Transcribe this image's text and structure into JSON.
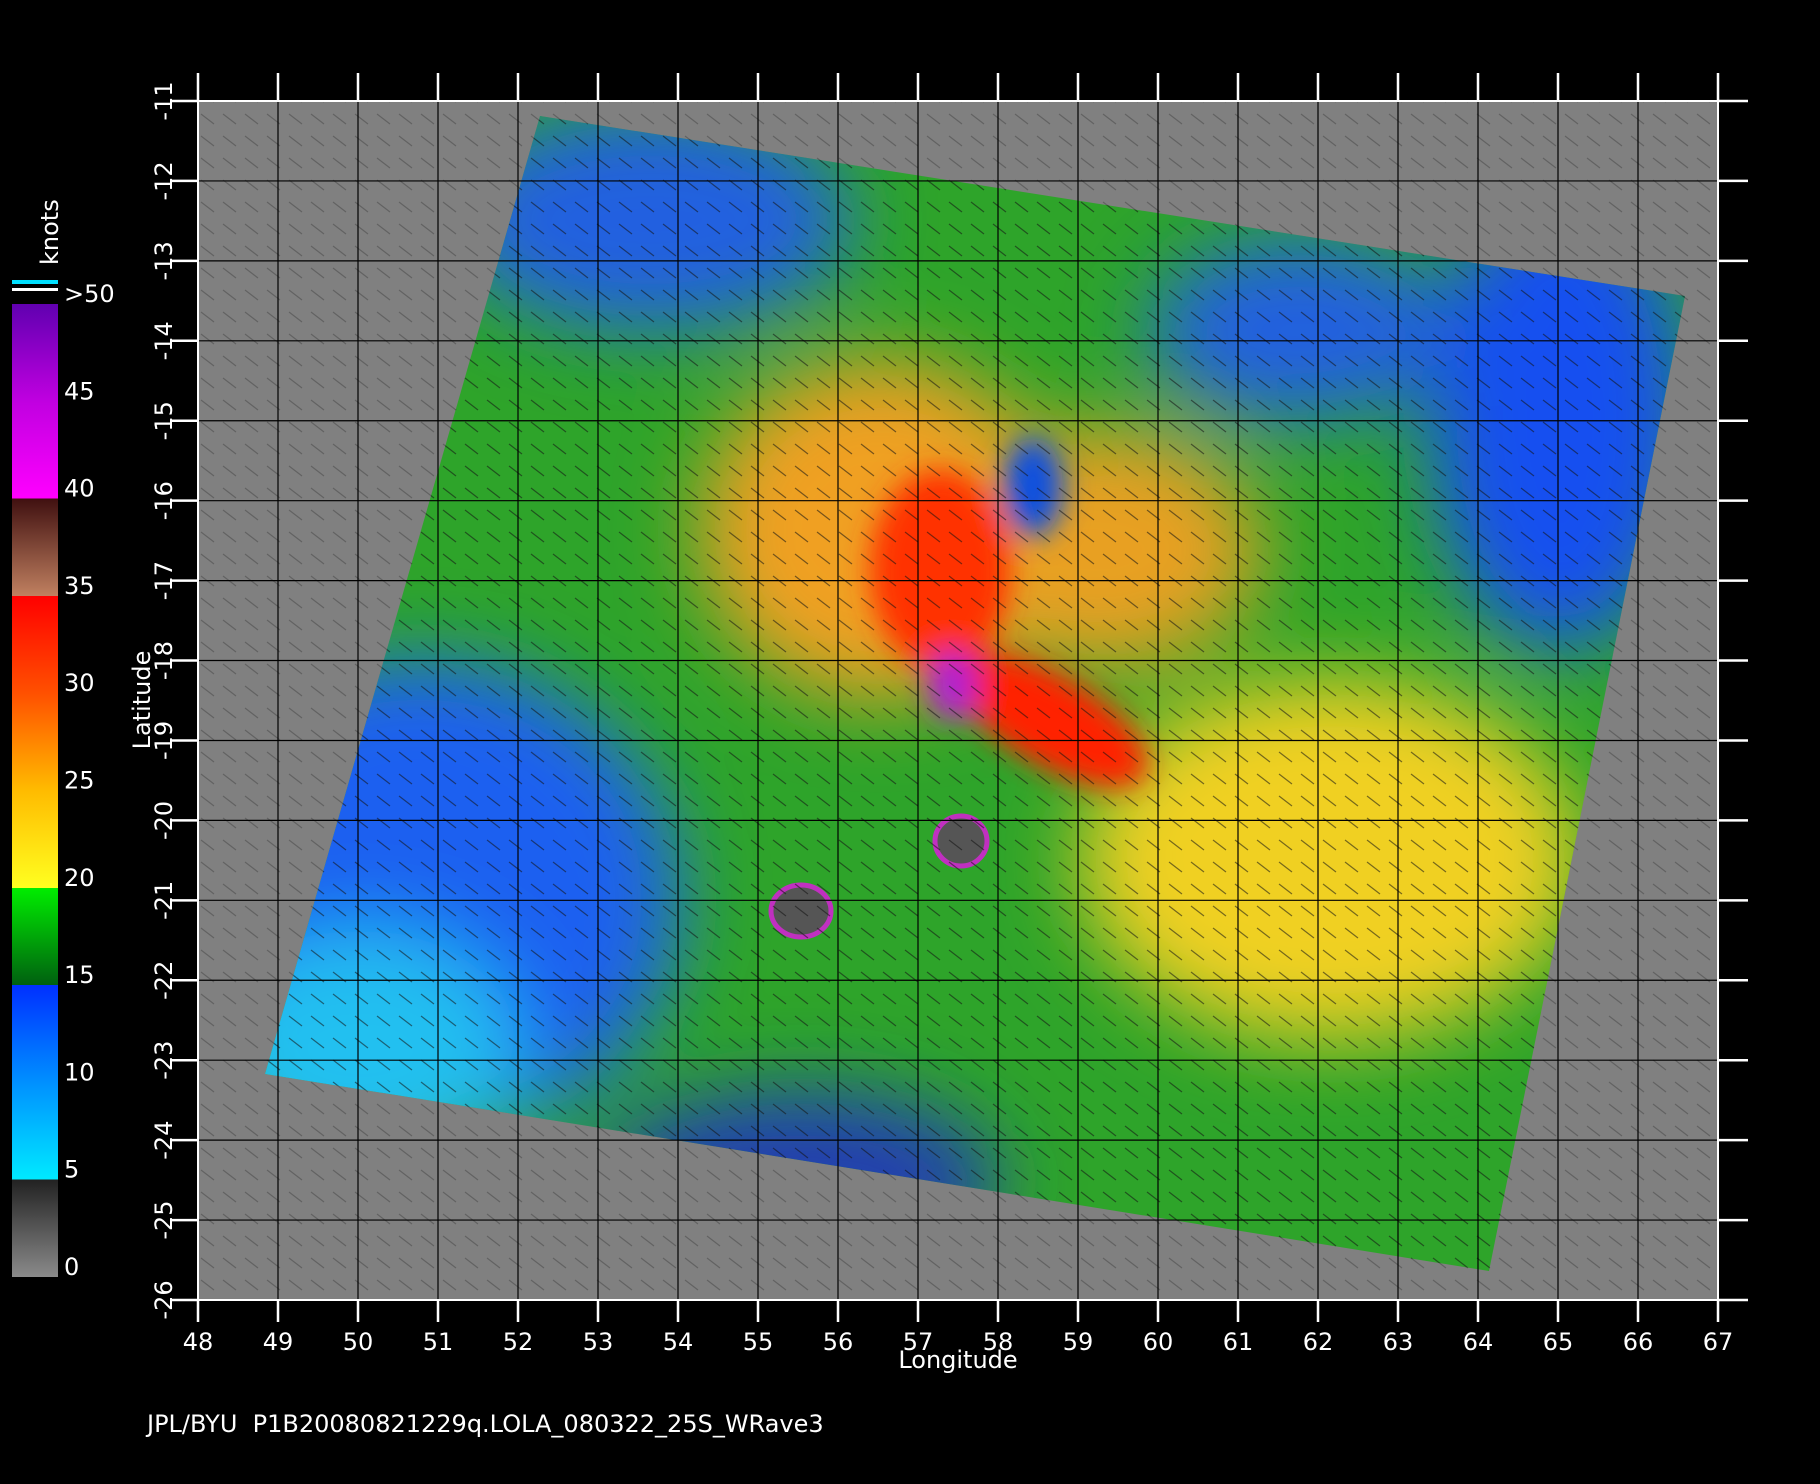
{
  "map": {
    "x_label": "Longitude",
    "y_label": "Latitude",
    "xlim": [
      48,
      67
    ],
    "ylim": [
      -26,
      -11
    ],
    "xticks": [
      48,
      49,
      50,
      51,
      52,
      53,
      54,
      55,
      56,
      57,
      58,
      59,
      60,
      61,
      62,
      63,
      64,
      65,
      66,
      67
    ],
    "yticks": [
      -11,
      -12,
      -13,
      -14,
      -15,
      -16,
      -17,
      -18,
      -19,
      -20,
      -21,
      -22,
      -23,
      -24,
      -25,
      -26
    ]
  },
  "colorbar": {
    "title": "knots",
    "range": [
      0,
      50
    ],
    "ticks": [
      0,
      5,
      10,
      15,
      20,
      25,
      30,
      35,
      40,
      45,
      {
        "value": 50,
        "label": ">50"
      }
    ]
  },
  "footer": "JPL/BYU  P1B20080821229q.LOLA_080322_25S_WRave3"
}
